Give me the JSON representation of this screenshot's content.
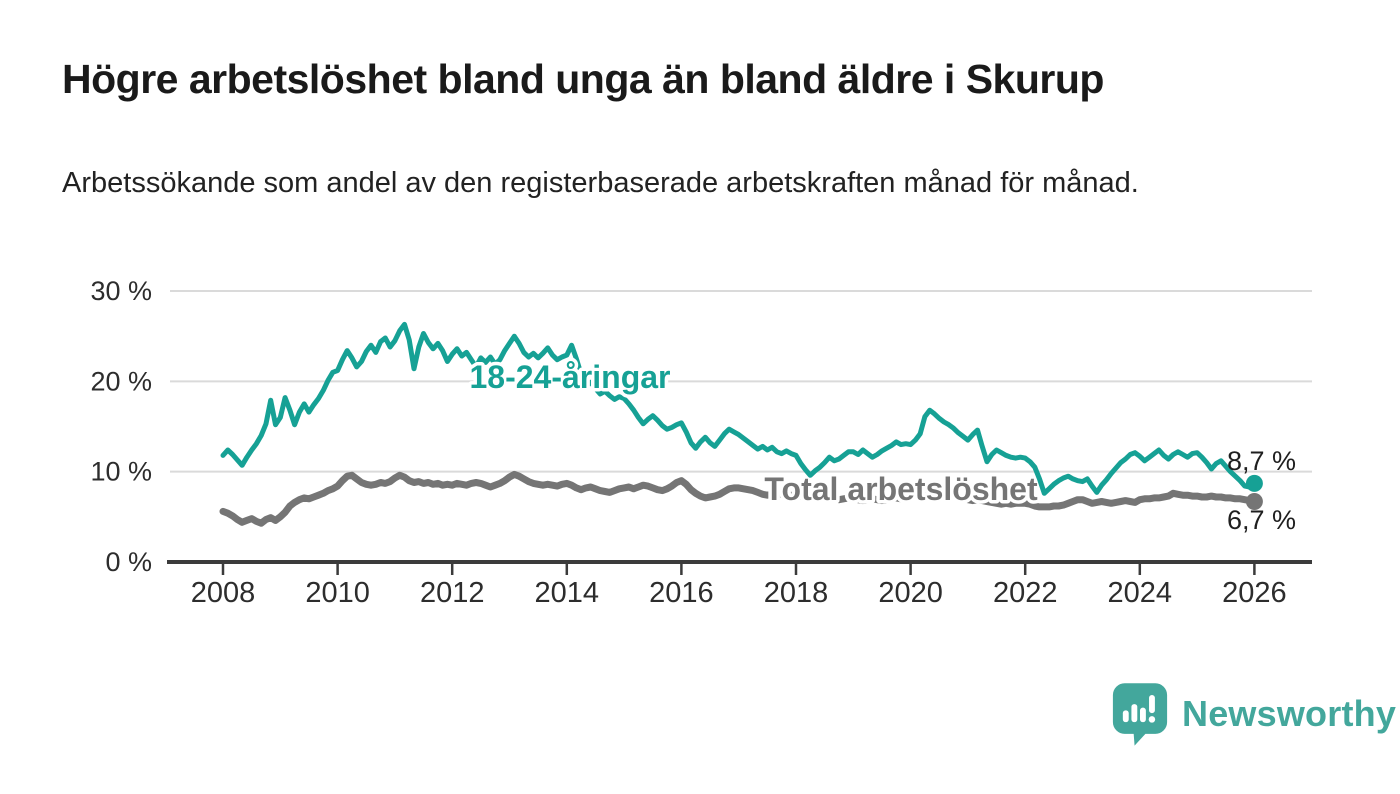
{
  "title": "Högre arbetslöshet bland unga än bland äldre i Skurup",
  "subtitle": "Arbetssökande som andel av den registerbaserade arbetskraften månad för månad.",
  "branding": {
    "name": "Newsworthy",
    "color": "#43a79c",
    "icon": "bar-chart-speech-bubble-icon"
  },
  "colors": {
    "background": "#ffffff",
    "title_text": "#1a1a1a",
    "body_text": "#222222",
    "tick_text": "#2d2d2d",
    "gridline": "#dadada",
    "axis": "#3b3b3b",
    "youth_series": "#16a195",
    "total_series": "#757575",
    "end_label_text": "#1f1f1f"
  },
  "chart_data": {
    "type": "line",
    "x_start_year": 2008,
    "x_step_months": 1,
    "x_end_label_note": "monthly values Jan 2008 - Jan 2026",
    "xlim": [
      2007.05,
      2027.05
    ],
    "ylim": [
      0,
      32
    ],
    "grid": "horizontal",
    "legend_position": "inline-labels",
    "x_ticks": [
      2008,
      2010,
      2012,
      2014,
      2016,
      2018,
      2020,
      2022,
      2024,
      2026
    ],
    "y_ticks": [
      {
        "value": 0,
        "label": "0 %"
      },
      {
        "value": 10,
        "label": "10 %"
      },
      {
        "value": 20,
        "label": "20 %"
      },
      {
        "value": 30,
        "label": "30 %"
      }
    ],
    "series": [
      {
        "name": "Total arbetslöshet",
        "color": "#757575",
        "end_value": 6.7,
        "end_label": "6,7 %",
        "values": [
          5.6,
          5.4,
          5.1,
          4.7,
          4.4,
          4.6,
          4.8,
          4.5,
          4.3,
          4.7,
          4.9,
          4.6,
          5.0,
          5.5,
          6.2,
          6.6,
          6.9,
          7.1,
          7.0,
          7.2,
          7.4,
          7.6,
          7.9,
          8.1,
          8.4,
          9.0,
          9.5,
          9.6,
          9.2,
          8.8,
          8.6,
          8.5,
          8.6,
          8.8,
          8.7,
          8.9,
          9.3,
          9.6,
          9.4,
          9.0,
          8.8,
          8.9,
          8.7,
          8.8,
          8.6,
          8.7,
          8.5,
          8.6,
          8.5,
          8.7,
          8.6,
          8.5,
          8.7,
          8.8,
          8.7,
          8.5,
          8.3,
          8.5,
          8.7,
          9.0,
          9.4,
          9.7,
          9.5,
          9.2,
          8.9,
          8.7,
          8.6,
          8.5,
          8.6,
          8.5,
          8.4,
          8.6,
          8.7,
          8.5,
          8.2,
          8.0,
          8.2,
          8.3,
          8.1,
          7.9,
          7.8,
          7.7,
          7.9,
          8.1,
          8.2,
          8.3,
          8.1,
          8.3,
          8.5,
          8.4,
          8.2,
          8.0,
          7.9,
          8.1,
          8.4,
          8.8,
          9.0,
          8.6,
          8.0,
          7.6,
          7.3,
          7.1,
          7.2,
          7.3,
          7.5,
          7.8,
          8.1,
          8.2,
          8.2,
          8.1,
          8.0,
          7.9,
          7.7,
          7.5,
          7.4,
          7.5,
          7.6,
          7.5,
          7.4,
          7.4,
          7.4,
          7.3,
          7.2,
          7.1,
          7.0,
          7.1,
          7.2,
          7.1,
          7.0,
          6.9,
          7.0,
          7.1,
          7.0,
          6.9,
          6.8,
          6.9,
          7.0,
          6.9,
          6.8,
          6.9,
          7.0,
          7.1,
          7.0,
          7.1,
          7.2,
          7.3,
          7.6,
          7.9,
          8.0,
          7.9,
          7.8,
          7.7,
          7.5,
          7.4,
          7.2,
          7.0,
          6.9,
          6.8,
          6.9,
          6.8,
          6.7,
          6.6,
          6.5,
          6.4,
          6.5,
          6.4,
          6.5,
          6.5,
          6.5,
          6.4,
          6.2,
          6.1,
          6.1,
          6.1,
          6.2,
          6.2,
          6.3,
          6.5,
          6.7,
          6.9,
          6.9,
          6.7,
          6.5,
          6.6,
          6.7,
          6.6,
          6.5,
          6.6,
          6.7,
          6.8,
          6.7,
          6.6,
          6.9,
          7.0,
          7.0,
          7.1,
          7.1,
          7.2,
          7.3,
          7.6,
          7.5,
          7.4,
          7.4,
          7.3,
          7.3,
          7.2,
          7.2,
          7.3,
          7.2,
          7.2,
          7.1,
          7.1,
          7.0,
          7.0,
          6.9,
          6.8,
          6.7
        ]
      },
      {
        "name": "18-24-åringar",
        "color": "#16a195",
        "end_value": 8.7,
        "end_label": "8,7 %",
        "values": [
          11.8,
          12.4,
          11.9,
          11.3,
          10.7,
          11.6,
          12.4,
          13.1,
          14.0,
          15.3,
          17.9,
          15.2,
          16.0,
          18.2,
          16.8,
          15.2,
          16.6,
          17.5,
          16.6,
          17.4,
          18.1,
          19.0,
          20.1,
          21.0,
          21.2,
          22.4,
          23.4,
          22.6,
          21.6,
          22.2,
          23.3,
          24.0,
          23.2,
          24.4,
          24.8,
          23.8,
          24.5,
          25.6,
          26.3,
          24.6,
          21.4,
          23.8,
          25.3,
          24.3,
          23.6,
          24.2,
          23.4,
          22.2,
          23.0,
          23.6,
          22.8,
          23.2,
          22.4,
          21.6,
          22.6,
          22.1,
          22.7,
          21.9,
          22.4,
          23.4,
          24.2,
          25.0,
          24.2,
          23.2,
          22.7,
          23.1,
          22.6,
          23.1,
          23.7,
          22.9,
          22.4,
          22.7,
          22.9,
          24.0,
          22.5,
          20.8,
          19.5,
          19.9,
          19.2,
          18.6,
          18.9,
          18.4,
          18.0,
          18.3,
          18.1,
          17.5,
          16.8,
          16.0,
          15.3,
          15.8,
          16.2,
          15.7,
          15.1,
          14.7,
          14.9,
          15.2,
          15.4,
          14.4,
          13.2,
          12.6,
          13.3,
          13.8,
          13.2,
          12.8,
          13.5,
          14.2,
          14.7,
          14.4,
          14.1,
          13.7,
          13.3,
          12.9,
          12.5,
          12.8,
          12.4,
          12.7,
          12.2,
          12.0,
          12.3,
          12.0,
          11.8,
          10.9,
          10.2,
          9.6,
          10.1,
          10.5,
          11.0,
          11.6,
          11.2,
          11.4,
          11.8,
          12.2,
          12.2,
          11.9,
          12.4,
          12.0,
          11.6,
          11.9,
          12.3,
          12.6,
          12.9,
          13.3,
          13.0,
          13.1,
          13.0,
          13.5,
          14.2,
          16.1,
          16.8,
          16.4,
          15.9,
          15.5,
          15.2,
          14.8,
          14.3,
          13.9,
          13.5,
          14.1,
          14.6,
          12.8,
          11.1,
          11.9,
          12.4,
          12.1,
          11.8,
          11.6,
          11.5,
          11.6,
          11.5,
          11.1,
          10.5,
          9.2,
          7.6,
          8.1,
          8.6,
          9.0,
          9.3,
          9.5,
          9.2,
          9.0,
          8.9,
          9.2,
          8.4,
          7.7,
          8.5,
          9.1,
          9.8,
          10.4,
          11.0,
          11.4,
          11.9,
          12.1,
          11.7,
          11.2,
          11.6,
          12.0,
          12.4,
          11.8,
          11.4,
          11.9,
          12.2,
          11.9,
          11.6,
          12.0,
          12.1,
          11.6,
          11.0,
          10.3,
          10.9,
          11.2,
          10.6,
          10.0,
          9.5,
          9.0,
          8.4,
          8.3,
          8.7
        ]
      }
    ]
  }
}
